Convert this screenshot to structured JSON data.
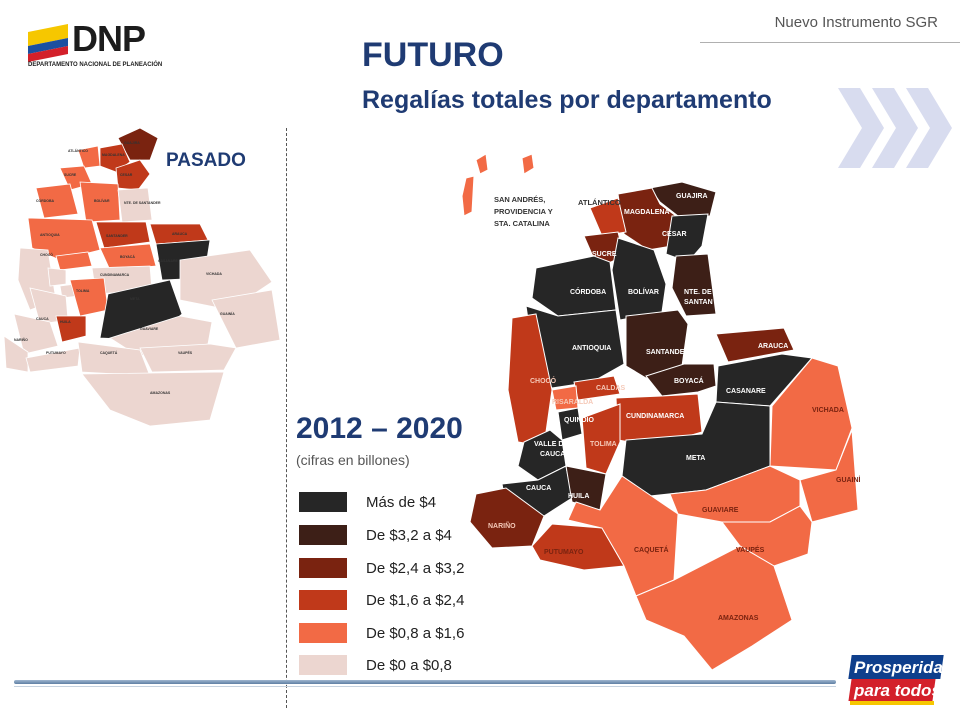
{
  "header": {
    "brand_text": "Nuevo Instrumento SGR",
    "logo_text": "DNP",
    "logo_subtext": "DEPARTAMENTO NACIONAL DE PLANEACIÓN",
    "title": "FUTURO",
    "subtitle": "Regalías totales por departamento"
  },
  "past_map": {
    "label": "PASADO",
    "departments": [
      "SAN ANDRÉS, PROVIDENCIA Y STA. CATALINA",
      "ATLÁNTICO",
      "GUAJIRA",
      "MAGDALENA",
      "CESAR",
      "SUCRE",
      "CÓRDOBA",
      "BOLÍVAR",
      "NTE. DE SANTANDER",
      "ANTIOQUIA",
      "SANTANDER",
      "ARAUCA",
      "CHOCÓ",
      "CALDAS",
      "BOYACÁ",
      "CASANARE",
      "RISARALDA",
      "QUINDÍO",
      "CUNDINAMARCA",
      "VICHADA",
      "VALLE DEL CAUCA",
      "TOLIMA",
      "META",
      "GUAINÍA",
      "CAUCA",
      "HUILA",
      "GUAVIARE",
      "NARIÑO",
      "PUTUMAYO",
      "CAQUETÁ",
      "VAUPÉS",
      "AMAZONAS"
    ]
  },
  "future_map": {
    "period": "2012 – 2020",
    "note": "(cifras en billones)",
    "departments": {
      "san_andres_1": "SAN ANDRÉS,",
      "san_andres_2": "PROVIDENCIA Y",
      "san_andres_3": "STA. CATALINA",
      "atlantico": "ATLÁNTICO",
      "guajira": "GUAJIRA",
      "magdalena": "MAGDALENA",
      "cesar": "CESAR",
      "sucre": "SUCRE",
      "cordoba": "CÓRDOBA",
      "bolivar": "BOLÍVAR",
      "nte_santander_1": "NTE. DE",
      "nte_santander_2": "SANTAN",
      "antioquia": "ANTIOQUIA",
      "santander": "SANTANDER",
      "arauca": "ARAUCA",
      "choco": "CHOCÓ",
      "caldas": "CALDAS",
      "boyaca": "BOYACÁ",
      "casanare": "CASANARE",
      "risaralda": "RISARALDA",
      "quindio": "QUINDÍO",
      "cundinamarca": "CUNDINAMARCA",
      "vichada": "VICHADA",
      "valle_1": "VALLE DEL",
      "valle_2": "CAUCA",
      "tolima": "TOLIMA",
      "meta": "META",
      "guainia": "GUAINÍA",
      "cauca": "CAUCA",
      "huila": "HUILA",
      "guaviare": "GUAVIARE",
      "narino": "NARIÑO",
      "putumayo": "PUTUMAYO",
      "caqueta": "CAQUETÁ",
      "vaupes": "VAUPÉS",
      "amazonas": "AMAZONAS"
    }
  },
  "legend": [
    {
      "label": "Más de $4",
      "color": "#262626"
    },
    {
      "label": "De $3,2 a $4",
      "color": "#3d1f17"
    },
    {
      "label": "De $2,4 a $3,2",
      "color": "#7a2310"
    },
    {
      "label": "De $1,6 a $2,4",
      "color": "#c0391a"
    },
    {
      "label": "De $0,8 a $1,6",
      "color": "#f26a45"
    },
    {
      "label": "De $0 a $0,8",
      "color": "#ecd6d0"
    }
  ],
  "footer": {
    "badge_line1": "Prosperidad",
    "badge_line2": "para todos"
  }
}
